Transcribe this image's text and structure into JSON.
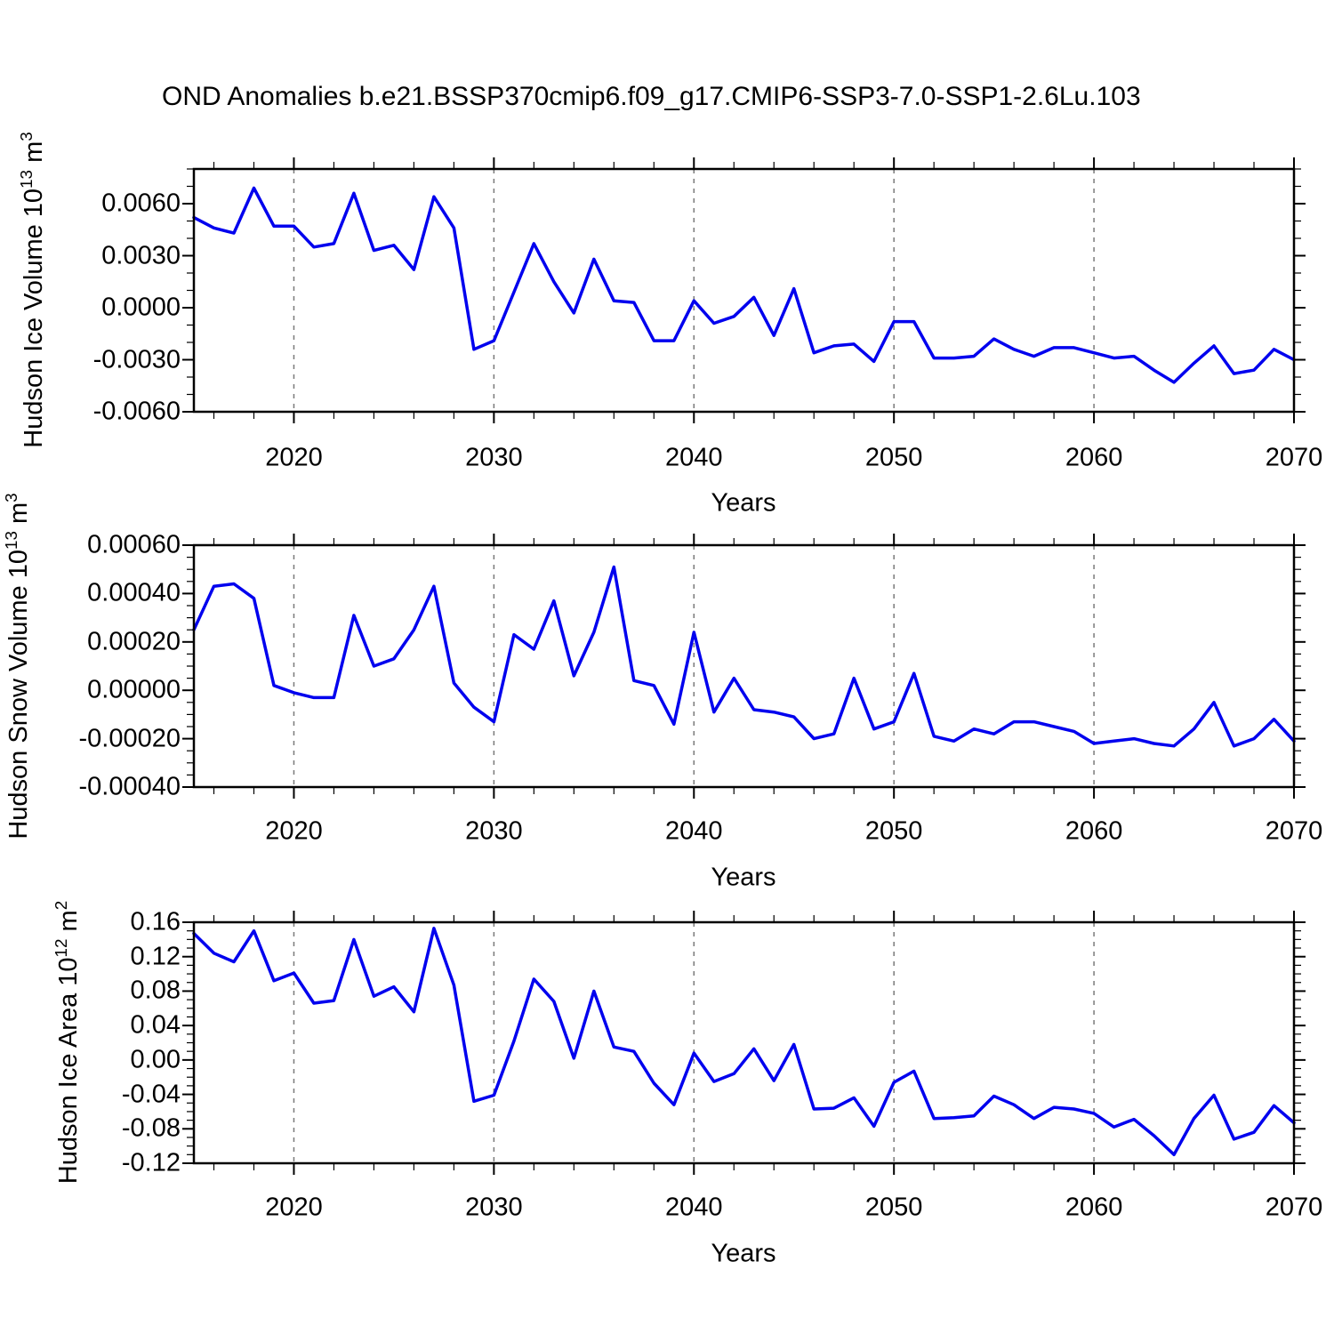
{
  "title": "OND Anomalies b.e21.BSSP370cmip6.f09_g17.CMIP6-SSP3-7.0-SSP1-2.6Lu.103",
  "colors": {
    "line": "#0000EE",
    "grid": "#7a7a7a",
    "axis": "#000000",
    "background": "#ffffff"
  },
  "years": [
    2015,
    2016,
    2017,
    2018,
    2019,
    2020,
    2021,
    2022,
    2023,
    2024,
    2025,
    2026,
    2027,
    2028,
    2029,
    2030,
    2031,
    2032,
    2033,
    2034,
    2035,
    2036,
    2037,
    2038,
    2039,
    2040,
    2041,
    2042,
    2043,
    2044,
    2045,
    2046,
    2047,
    2048,
    2049,
    2050,
    2051,
    2052,
    2053,
    2054,
    2055,
    2056,
    2057,
    2058,
    2059,
    2060,
    2061,
    2062,
    2063,
    2064,
    2065,
    2066,
    2067,
    2068,
    2069,
    2070
  ],
  "xaxis": {
    "label": "Years",
    "xlim": [
      2015,
      2070
    ],
    "major_ticks": [
      2020,
      2030,
      2040,
      2050,
      2060,
      2070
    ],
    "tick_labels": [
      "2020",
      "2030",
      "2040",
      "2050",
      "2060",
      "2070"
    ],
    "minor_step": 2,
    "grid_years": [
      2020,
      2030,
      2040,
      2050,
      2060
    ],
    "grid_style": "dashed"
  },
  "chart_data": [
    {
      "type": "line",
      "name": "hudson-ice-volume",
      "ylabel": "Hudson Ice Volume 10^13 m^3",
      "ylabel_parts": {
        "prefix": "Hudson Ice Volume 10",
        "sup1": "13",
        "mid": " m",
        "sup2": "3"
      },
      "ylim": [
        -0.006,
        0.008
      ],
      "ytick_values": [
        0.006,
        0.003,
        0.0,
        -0.003,
        -0.006
      ],
      "ytick_labels": [
        "0.0060",
        "0.0030",
        "0.0000",
        "-0.0030",
        "-0.0060"
      ],
      "yminor_step": 0.001,
      "values": [
        0.0052,
        0.0046,
        0.0043,
        0.0069,
        0.0047,
        0.0047,
        0.0035,
        0.0037,
        0.0066,
        0.0033,
        0.0036,
        0.0022,
        0.0064,
        0.0046,
        -0.0024,
        -0.0019,
        0.0009,
        0.0037,
        0.0015,
        -0.0003,
        0.0028,
        0.0004,
        0.0003,
        -0.0019,
        -0.0019,
        0.0004,
        -0.0009,
        -0.0005,
        0.0006,
        -0.0016,
        0.0011,
        -0.0026,
        -0.0022,
        -0.0021,
        -0.0031,
        -0.0008,
        -0.0008,
        -0.0029,
        -0.0029,
        -0.0028,
        -0.0018,
        -0.0024,
        -0.0028,
        -0.0023,
        -0.0023,
        -0.0026,
        -0.0029,
        -0.0028,
        -0.0036,
        -0.0043,
        -0.0032,
        -0.0022,
        -0.0038,
        -0.0036,
        -0.0024,
        -0.003
      ]
    },
    {
      "type": "line",
      "name": "hudson-snow-volume",
      "ylabel": "Hudson Snow Volume 10^13 m^3",
      "ylabel_parts": {
        "prefix": "Hudson Snow Volume 10",
        "sup1": "13",
        "mid": " m",
        "sup2": "3"
      },
      "ylim": [
        -0.0004,
        0.0006
      ],
      "ytick_values": [
        0.0006,
        0.0004,
        0.0002,
        0.0,
        -0.0002,
        -0.0004
      ],
      "ytick_labels": [
        "0.00060",
        "0.00040",
        "0.00020",
        "0.00000",
        "-0.00020",
        "-0.00040"
      ],
      "yminor_step": 5e-05,
      "values": [
        0.00025,
        0.00043,
        0.00044,
        0.00038,
        2e-05,
        -1e-05,
        -3e-05,
        -3e-05,
        0.00031,
        0.0001,
        0.00013,
        0.00025,
        0.00043,
        3e-05,
        -7e-05,
        -0.00013,
        0.00023,
        0.00017,
        0.00037,
        6e-05,
        0.00024,
        0.00051,
        4e-05,
        2e-05,
        -0.00014,
        0.00024,
        -9e-05,
        5e-05,
        -8e-05,
        -9e-05,
        -0.00011,
        -0.0002,
        -0.00018,
        5e-05,
        -0.00016,
        -0.00013,
        7e-05,
        -0.00019,
        -0.00021,
        -0.00016,
        -0.00018,
        -0.00013,
        -0.00013,
        -0.00015,
        -0.00017,
        -0.00022,
        -0.00021,
        -0.0002,
        -0.00022,
        -0.00023,
        -0.00016,
        -5e-05,
        -0.00023,
        -0.0002,
        -0.00012,
        -0.00021
      ]
    },
    {
      "type": "line",
      "name": "hudson-ice-area",
      "ylabel": "Hudson Ice Area 10^12 m^2",
      "ylabel_parts": {
        "prefix": "Hudson Ice Area 10",
        "sup1": "12",
        "mid": " m",
        "sup2": "2"
      },
      "ylim": [
        -0.12,
        0.16
      ],
      "ytick_values": [
        0.16,
        0.12,
        0.08,
        0.04,
        0.0,
        -0.04,
        -0.08,
        -0.12
      ],
      "ytick_labels": [
        "0.16",
        "0.12",
        "0.08",
        "0.04",
        "0.00",
        "-0.04",
        "-0.08",
        "-0.12"
      ],
      "yminor_step": 0.01,
      "values": [
        0.147,
        0.124,
        0.114,
        0.15,
        0.092,
        0.101,
        0.066,
        0.069,
        0.14,
        0.074,
        0.085,
        0.056,
        0.153,
        0.087,
        -0.048,
        -0.041,
        0.022,
        0.094,
        0.068,
        0.002,
        0.08,
        0.015,
        0.01,
        -0.027,
        -0.052,
        0.008,
        -0.025,
        -0.016,
        0.013,
        -0.024,
        0.018,
        -0.057,
        -0.056,
        -0.044,
        -0.077,
        -0.026,
        -0.013,
        -0.068,
        -0.067,
        -0.065,
        -0.042,
        -0.052,
        -0.068,
        -0.055,
        -0.057,
        -0.062,
        -0.078,
        -0.069,
        -0.088,
        -0.11,
        -0.068,
        -0.041,
        -0.092,
        -0.084,
        -0.053,
        -0.073
      ]
    }
  ]
}
